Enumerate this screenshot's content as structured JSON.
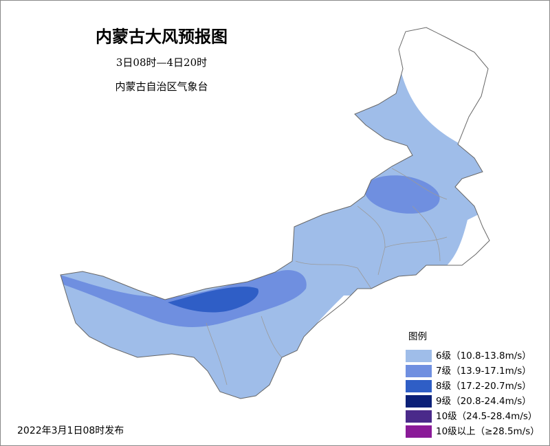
{
  "header": {
    "title": "内蒙古大风预报图",
    "period": "3日08时—4日20时",
    "issuer": "内蒙古自治区气象台"
  },
  "legend": {
    "title": "图例",
    "items": [
      {
        "label": "6级（10.8-13.8m/s）",
        "color": "#9fbde9"
      },
      {
        "label": "7级（13.9-17.1m/s）",
        "color": "#6f8fe0"
      },
      {
        "label": "8级（17.2-20.7m/s）",
        "color": "#2f5ec6"
      },
      {
        "label": "9级（20.8-24.4m/s）",
        "color": "#0b2078"
      },
      {
        "label": "10级（24.5-28.4m/s）",
        "color": "#4a2a8a"
      },
      {
        "label": "10级以上（≥28.5m/s）",
        "color": "#8a1a98"
      }
    ]
  },
  "footer": {
    "issued": "2022年3月1日08时发布"
  }
}
